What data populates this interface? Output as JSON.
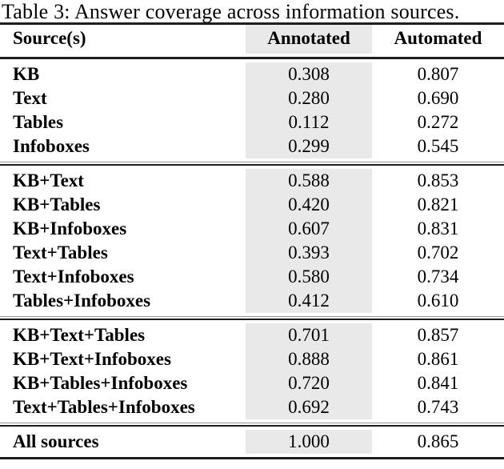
{
  "title": "Table 3: Answer coverage across information sources.",
  "columns": {
    "source": "Source(s)",
    "annotated": "Annotated",
    "automated": "Automated"
  },
  "groups": [
    {
      "rows": [
        {
          "source": "KB",
          "annotated": "0.308",
          "automated": "0.807"
        },
        {
          "source": "Text",
          "annotated": "0.280",
          "automated": "0.690"
        },
        {
          "source": "Tables",
          "annotated": "0.112",
          "automated": "0.272"
        },
        {
          "source": "Infoboxes",
          "annotated": "0.299",
          "automated": "0.545"
        }
      ]
    },
    {
      "rows": [
        {
          "source": "KB+Text",
          "annotated": "0.588",
          "automated": "0.853"
        },
        {
          "source": "KB+Tables",
          "annotated": "0.420",
          "automated": "0.821"
        },
        {
          "source": "KB+Infoboxes",
          "annotated": "0.607",
          "automated": "0.831"
        },
        {
          "source": "Text+Tables",
          "annotated": "0.393",
          "automated": "0.702"
        },
        {
          "source": "Text+Infoboxes",
          "annotated": "0.580",
          "automated": "0.734"
        },
        {
          "source": "Tables+Infoboxes",
          "annotated": "0.412",
          "automated": "0.610"
        }
      ]
    },
    {
      "rows": [
        {
          "source": "KB+Text+Tables",
          "annotated": "0.701",
          "automated": "0.857"
        },
        {
          "source": "KB+Text+Infoboxes",
          "annotated": "0.888",
          "automated": "0.861"
        },
        {
          "source": "KB+Tables+Infoboxes",
          "annotated": "0.720",
          "automated": "0.841"
        },
        {
          "source": "Text+Tables+Infoboxes",
          "annotated": "0.692",
          "automated": "0.743"
        }
      ]
    },
    {
      "rows": [
        {
          "source": "All sources",
          "annotated": "1.000",
          "automated": "0.865"
        }
      ]
    }
  ],
  "colors": {
    "shade": "#e9e9e9",
    "rule": "#1d1d1d",
    "text": "#000000",
    "background": "#ffffff"
  }
}
